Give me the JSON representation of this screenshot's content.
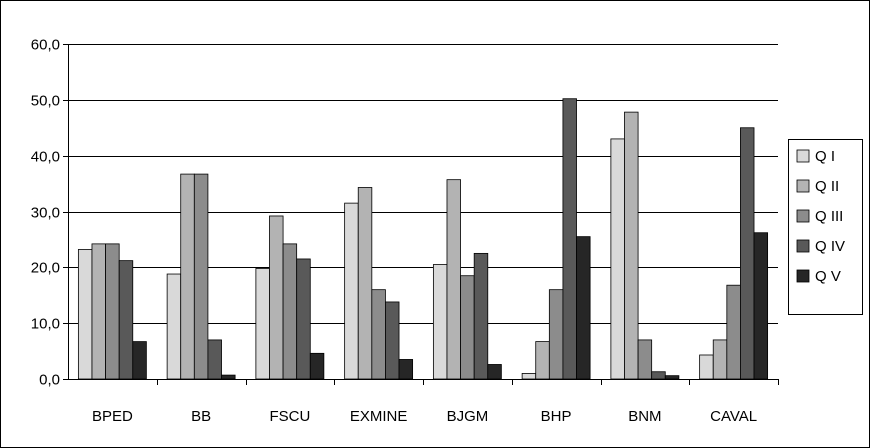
{
  "chart_data": {
    "type": "bar",
    "title": "",
    "xlabel": "",
    "ylabel": "",
    "categories": [
      "BPED",
      "BB",
      "FSCU",
      "EXMINE",
      "BJGM",
      "BHP",
      "BNM",
      "CAVAL"
    ],
    "ylim": [
      0,
      60
    ],
    "yticks": [
      0,
      10,
      20,
      30,
      40,
      50,
      60
    ],
    "ytick_labels": [
      "0,0",
      "10,0",
      "20,0",
      "30,0",
      "40,0",
      "50,0",
      "60,0"
    ],
    "grid": true,
    "legend_position": "right",
    "series": [
      {
        "name": "Q I",
        "color": "#d9d9d9",
        "values": [
          23.2,
          18.8,
          19.8,
          31.5,
          20.5,
          1.0,
          43.0,
          4.3
        ]
      },
      {
        "name": "Q II",
        "color": "#b3b3b3",
        "values": [
          24.2,
          36.7,
          29.2,
          34.3,
          35.7,
          6.7,
          47.8,
          7.0
        ]
      },
      {
        "name": "Q III",
        "color": "#8c8c8c",
        "values": [
          24.2,
          36.7,
          24.2,
          16.0,
          18.5,
          16.0,
          7.0,
          16.8
        ]
      },
      {
        "name": "Q IV",
        "color": "#595959",
        "values": [
          21.2,
          7.0,
          21.5,
          13.8,
          22.5,
          50.2,
          1.3,
          45.0
        ]
      },
      {
        "name": "Q V",
        "color": "#262626",
        "values": [
          6.7,
          0.7,
          4.6,
          3.5,
          2.6,
          25.5,
          0.6,
          26.2
        ]
      }
    ]
  }
}
